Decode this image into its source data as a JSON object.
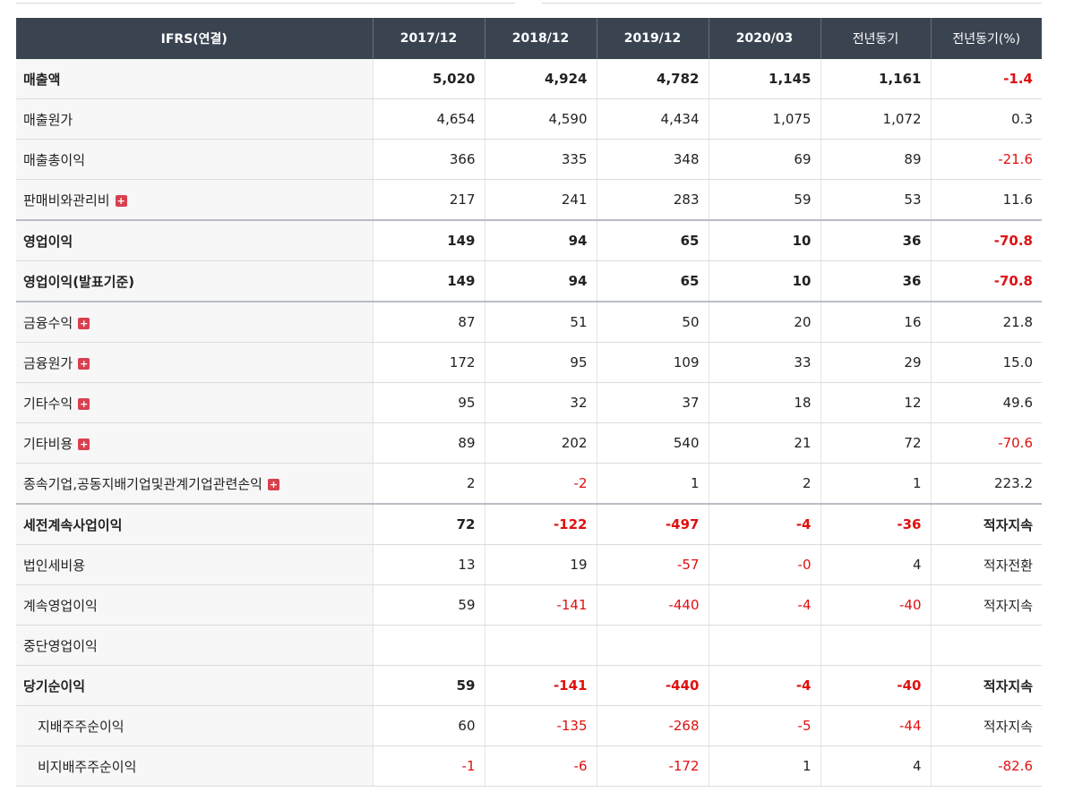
{
  "header": [
    "IFRS(연결)",
    "2017/12",
    "2018/12",
    "2019/12",
    "2020/03",
    "전년동기",
    "전년동기(%)"
  ],
  "rows": [
    {
      "label": "매출액",
      "bold": true,
      "sep": false,
      "sub": false,
      "expand": false,
      "values": [
        "5,020",
        "4,924",
        "4,782",
        "1,145",
        "1,161",
        "-1.4"
      ]
    },
    {
      "label": "매출원가",
      "bold": false,
      "sep": false,
      "sub": false,
      "expand": false,
      "values": [
        "4,654",
        "4,590",
        "4,434",
        "1,075",
        "1,072",
        "0.3"
      ]
    },
    {
      "label": "매출총이익",
      "bold": false,
      "sep": false,
      "sub": false,
      "expand": false,
      "values": [
        "366",
        "335",
        "348",
        "69",
        "89",
        "-21.6"
      ]
    },
    {
      "label": "판매비와관리비",
      "bold": false,
      "sep": false,
      "sub": false,
      "expand": true,
      "values": [
        "217",
        "241",
        "283",
        "59",
        "53",
        "11.6"
      ]
    },
    {
      "label": "영업이익",
      "bold": true,
      "sep": true,
      "sub": false,
      "expand": false,
      "values": [
        "149",
        "94",
        "65",
        "10",
        "36",
        "-70.8"
      ]
    },
    {
      "label": "영업이익(발표기준)",
      "bold": true,
      "sep": false,
      "sub": false,
      "expand": false,
      "values": [
        "149",
        "94",
        "65",
        "10",
        "36",
        "-70.8"
      ]
    },
    {
      "label": "금융수익",
      "bold": false,
      "sep": true,
      "sub": false,
      "expand": true,
      "values": [
        "87",
        "51",
        "50",
        "20",
        "16",
        "21.8"
      ]
    },
    {
      "label": "금융원가",
      "bold": false,
      "sep": false,
      "sub": false,
      "expand": true,
      "values": [
        "172",
        "95",
        "109",
        "33",
        "29",
        "15.0"
      ]
    },
    {
      "label": "기타수익",
      "bold": false,
      "sep": false,
      "sub": false,
      "expand": true,
      "values": [
        "95",
        "32",
        "37",
        "18",
        "12",
        "49.6"
      ]
    },
    {
      "label": "기타비용",
      "bold": false,
      "sep": false,
      "sub": false,
      "expand": true,
      "values": [
        "89",
        "202",
        "540",
        "21",
        "72",
        "-70.6"
      ]
    },
    {
      "label": "종속기업,공동지배기업및관계기업관련손익",
      "bold": false,
      "sep": false,
      "sub": false,
      "expand": true,
      "values": [
        "2",
        "-2",
        "1",
        "2",
        "1",
        "223.2"
      ]
    },
    {
      "label": "세전계속사업이익",
      "bold": true,
      "sep": true,
      "sub": false,
      "expand": false,
      "values": [
        "72",
        "-122",
        "-497",
        "-4",
        "-36",
        "적자지속"
      ]
    },
    {
      "label": "법인세비용",
      "bold": false,
      "sep": false,
      "sub": false,
      "expand": false,
      "values": [
        "13",
        "19",
        "-57",
        "-0",
        "4",
        "적자전환"
      ]
    },
    {
      "label": "계속영업이익",
      "bold": false,
      "sep": false,
      "sub": false,
      "expand": false,
      "values": [
        "59",
        "-141",
        "-440",
        "-4",
        "-40",
        "적자지속"
      ]
    },
    {
      "label": "중단영업이익",
      "bold": false,
      "sep": false,
      "sub": false,
      "expand": false,
      "values": [
        "",
        "",
        "",
        "",
        "",
        ""
      ]
    },
    {
      "label": "당기순이익",
      "bold": true,
      "sep": false,
      "sub": false,
      "expand": false,
      "values": [
        "59",
        "-141",
        "-440",
        "-4",
        "-40",
        "적자지속"
      ]
    },
    {
      "label": "지배주주순이익",
      "bold": false,
      "sep": false,
      "sub": true,
      "expand": false,
      "values": [
        "60",
        "-135",
        "-268",
        "-5",
        "-44",
        "적자지속"
      ]
    },
    {
      "label": "비지배주주순이익",
      "bold": false,
      "sep": false,
      "sub": true,
      "expand": false,
      "values": [
        "-1",
        "-6",
        "-172",
        "1",
        "4",
        "-82.6"
      ]
    }
  ],
  "colors": {
    "header_bg": "#3a4451",
    "negative": "#e01010",
    "label_bg": "#f7f7f8",
    "expand_icon": "#d9404e"
  },
  "icons": {
    "expand": "plus-icon"
  },
  "expand_glyph": "+"
}
